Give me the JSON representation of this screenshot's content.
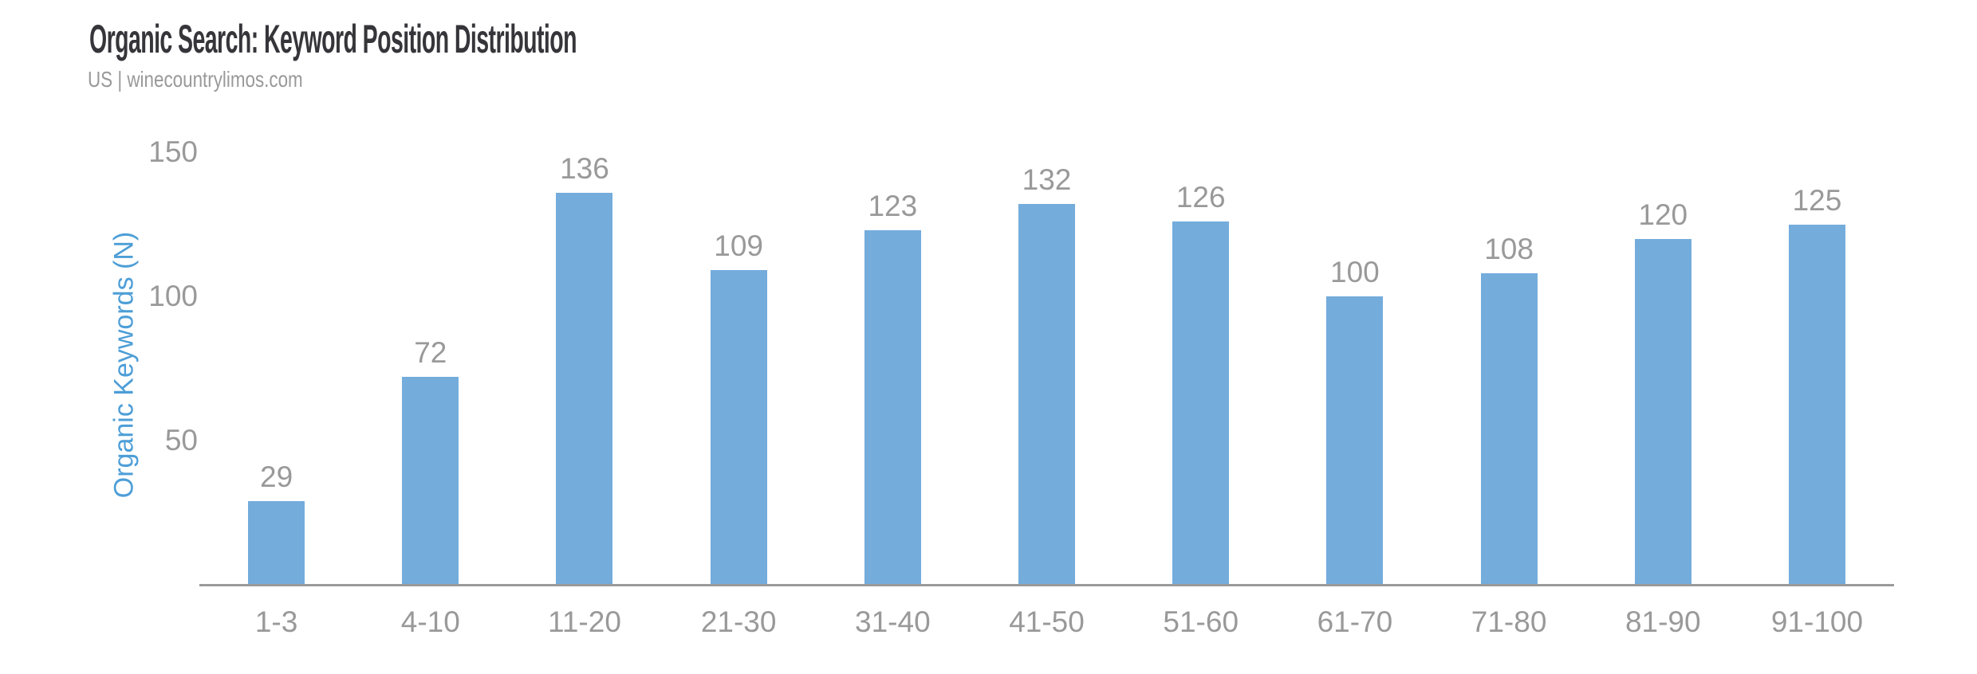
{
  "header": {
    "title": "Organic Search: Keyword Position Distribution",
    "subtitle": "US | winecountrylimos.com"
  },
  "chart_data": {
    "type": "bar",
    "title": "Organic Search: Keyword Position Distribution",
    "subtitle": "US | winecountrylimos.com",
    "categories": [
      "1-3",
      "4-10",
      "11-20",
      "21-30",
      "31-40",
      "41-50",
      "51-60",
      "61-70",
      "71-80",
      "81-90",
      "91-100"
    ],
    "values": [
      29,
      72,
      136,
      109,
      123,
      132,
      126,
      100,
      108,
      120,
      125
    ],
    "xlabel": "",
    "ylabel": "Organic Keywords (N)",
    "ylim": [
      0,
      150
    ],
    "yticks": [
      50,
      100,
      150
    ],
    "grid": false,
    "legend": false,
    "data_labels_shown": true,
    "colors": {
      "bar": "#74acdc",
      "ylabel_text": "#4d9ed7",
      "tick_text": "#999999",
      "axis_line": "#9a9a9a",
      "title_text": "#35353a"
    }
  }
}
